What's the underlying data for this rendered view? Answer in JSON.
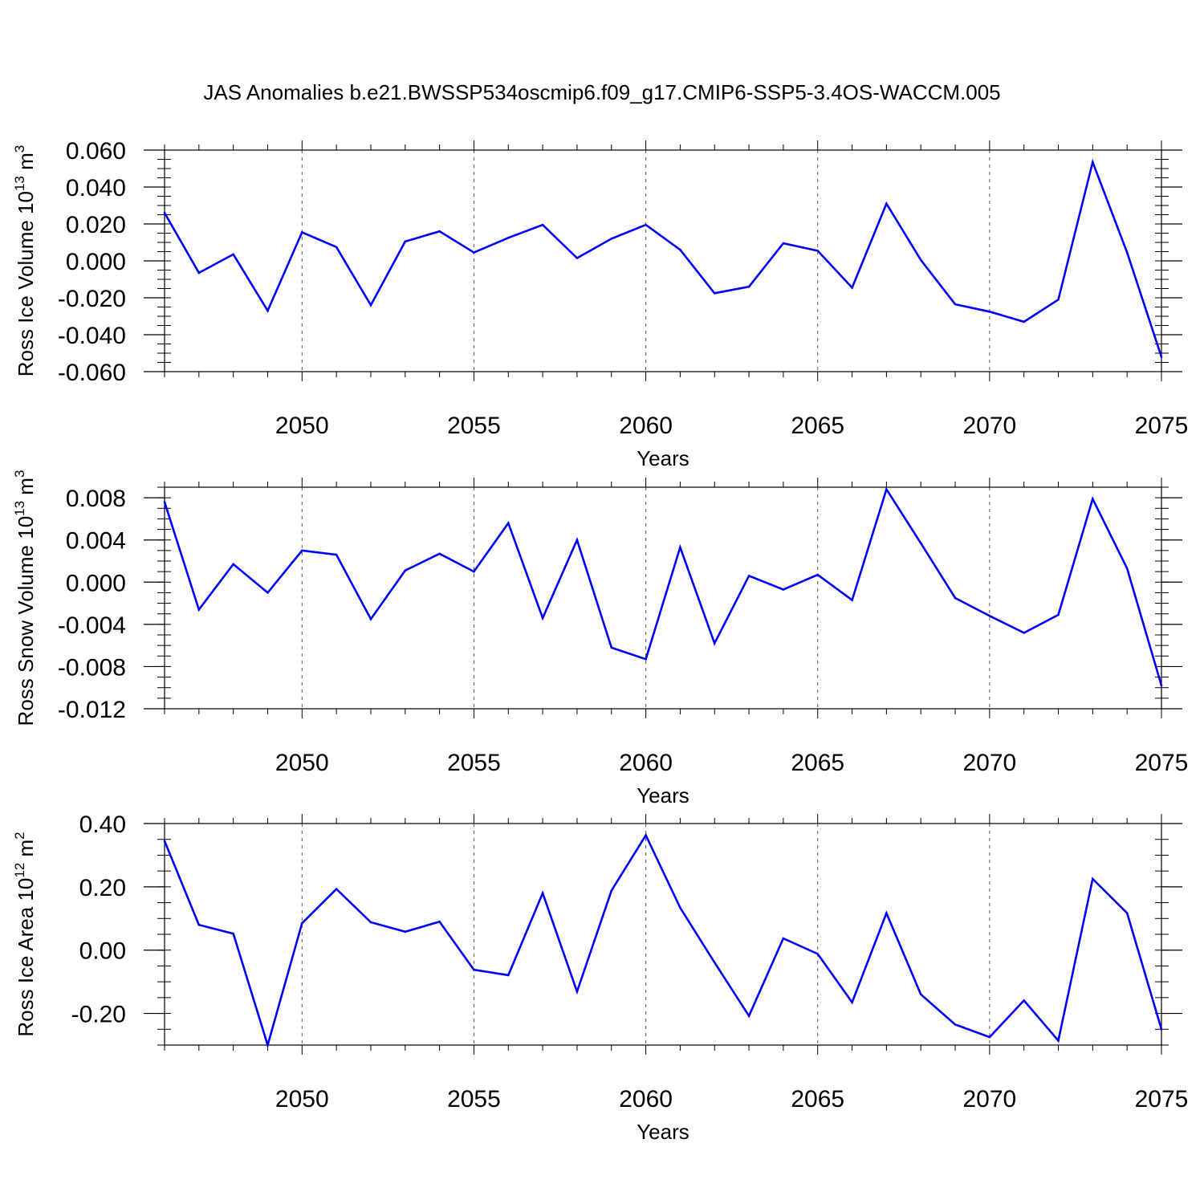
{
  "title": "JAS Anomalies b.e21.BWSSP534oscmip6.f09_g17.CMIP6-SSP5-3.4OS-WACCM.005",
  "colors": {
    "line": "#0000ff",
    "axis": "#000000",
    "grid": "#555555"
  },
  "chart_data": [
    {
      "type": "line",
      "ylabel": "Ross Ice Volume",
      "yunit": "10^13 m^3",
      "ylabel_parts": {
        "text": "Ross Ice Volume 10",
        "exp1": "13",
        "unit": " m",
        "exp2": "3"
      },
      "xlabel": "Years",
      "xlim": [
        2046,
        2075
      ],
      "ylim": [
        -0.06,
        0.06
      ],
      "yticks": [
        -0.06,
        -0.04,
        -0.02,
        0.0,
        0.02,
        0.04,
        0.06
      ],
      "ytick_labels": [
        "-0.060",
        "-0.040",
        "-0.020",
        "0.000",
        "0.020",
        "0.040",
        "0.060"
      ],
      "yminor": 0.005,
      "xticks": [
        2050,
        2055,
        2060,
        2065,
        2070,
        2075
      ],
      "xtick_labels": [
        "2050",
        "2055",
        "2060",
        "2065",
        "2070",
        "2075"
      ],
      "x": [
        2046,
        2047,
        2048,
        2049,
        2050,
        2051,
        2052,
        2053,
        2054,
        2055,
        2056,
        2057,
        2058,
        2059,
        2060,
        2061,
        2062,
        2063,
        2064,
        2065,
        2066,
        2067,
        2068,
        2069,
        2070,
        2071,
        2072,
        2073,
        2074,
        2075
      ],
      "values": [
        0.026,
        -0.0065,
        0.0035,
        -0.027,
        0.0155,
        0.0075,
        -0.024,
        0.0105,
        0.016,
        0.0045,
        0.0125,
        0.0195,
        0.0015,
        0.012,
        0.0195,
        0.006,
        -0.0175,
        -0.014,
        0.0095,
        0.0055,
        -0.0145,
        0.031,
        0.0005,
        -0.0235,
        -0.0275,
        -0.033,
        -0.021,
        0.0535,
        0.0045,
        -0.052
      ]
    },
    {
      "type": "line",
      "ylabel": "Ross Snow Volume",
      "yunit": "10^13 m^3",
      "ylabel_parts": {
        "text": "Ross Snow Volume 10",
        "exp1": "13",
        "unit": " m",
        "exp2": "3"
      },
      "xlabel": "Years",
      "xlim": [
        2046,
        2075
      ],
      "ylim": [
        -0.012,
        0.009
      ],
      "yticks": [
        -0.012,
        -0.008,
        -0.004,
        0.0,
        0.004,
        0.008
      ],
      "ytick_labels": [
        "-0.012",
        "-0.008",
        "-0.004",
        "0.000",
        "0.004",
        "0.008"
      ],
      "yminor": 0.001,
      "xticks": [
        2050,
        2055,
        2060,
        2065,
        2070,
        2075
      ],
      "xtick_labels": [
        "2050",
        "2055",
        "2060",
        "2065",
        "2070",
        "2075"
      ],
      "x": [
        2046,
        2047,
        2048,
        2049,
        2050,
        2051,
        2052,
        2053,
        2054,
        2055,
        2056,
        2057,
        2058,
        2059,
        2060,
        2061,
        2062,
        2063,
        2064,
        2065,
        2066,
        2067,
        2068,
        2069,
        2070,
        2071,
        2072,
        2073,
        2074,
        2075
      ],
      "values": [
        0.0076,
        -0.0026,
        0.0017,
        -0.001,
        0.003,
        0.0026,
        -0.0035,
        0.0011,
        0.0027,
        0.001,
        0.0056,
        -0.0034,
        0.004,
        -0.0062,
        -0.0073,
        0.0033,
        -0.0058,
        0.0006,
        -0.0007,
        0.0007,
        -0.0017,
        0.0088,
        0.0037,
        -0.0015,
        -0.0032,
        -0.0048,
        -0.0031,
        0.0079,
        0.0013,
        -0.0098
      ]
    },
    {
      "type": "line",
      "ylabel": "Ross Ice Area",
      "yunit": "10^12 m^2",
      "ylabel_parts": {
        "text": "Ross Ice Area 10",
        "exp1": "12",
        "unit": " m",
        "exp2": "2"
      },
      "xlabel": "Years",
      "xlim": [
        2046,
        2075
      ],
      "ylim": [
        -0.3,
        0.4
      ],
      "yticks": [
        -0.2,
        0.0,
        0.2,
        0.4
      ],
      "ytick_labels": [
        "-0.20",
        "0.00",
        "0.20",
        "0.40"
      ],
      "yminor": 0.05,
      "xticks": [
        2050,
        2055,
        2060,
        2065,
        2070,
        2075
      ],
      "xtick_labels": [
        "2050",
        "2055",
        "2060",
        "2065",
        "2070",
        "2075"
      ],
      "x": [
        2046,
        2047,
        2048,
        2049,
        2050,
        2051,
        2052,
        2053,
        2054,
        2055,
        2056,
        2057,
        2058,
        2059,
        2060,
        2061,
        2062,
        2063,
        2064,
        2065,
        2066,
        2067,
        2068,
        2069,
        2070,
        2071,
        2072,
        2073,
        2074,
        2075
      ],
      "values": [
        0.345,
        0.08,
        0.052,
        -0.3,
        0.085,
        0.193,
        0.088,
        0.058,
        0.09,
        -0.062,
        -0.079,
        0.18,
        -0.131,
        0.188,
        0.363,
        0.134,
        -0.039,
        -0.208,
        0.037,
        -0.012,
        -0.165,
        0.117,
        -0.14,
        -0.235,
        -0.275,
        -0.159,
        -0.286,
        0.225,
        0.117,
        -0.25
      ]
    }
  ]
}
